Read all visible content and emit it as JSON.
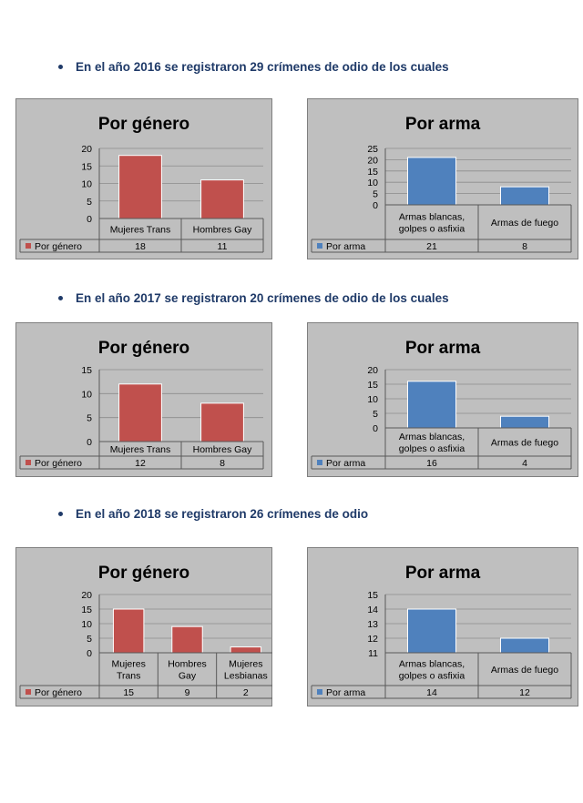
{
  "headings": [
    "En el año 2016 se registraron 29 crímenes de odio de los cuales",
    "En el año 2017 se registraron 20 crímenes de odio de los cuales",
    "En el año 2018 se registraron 26 crímenes de odio"
  ],
  "colors": {
    "gender": "#c0504d",
    "weapon": "#4f81bd",
    "panel": "#bfbfbf"
  },
  "chart_data": [
    {
      "type": "bar",
      "title": "Por género",
      "categories": [
        [
          "Mujeres Trans"
        ],
        [
          "Hombres Gay"
        ]
      ],
      "series": [
        {
          "name": "Por género",
          "values": [
            18,
            11
          ]
        }
      ],
      "ylim": [
        0,
        20
      ],
      "yticks": [
        0,
        5,
        10,
        15,
        20
      ]
    },
    {
      "type": "bar",
      "title": "Por arma",
      "categories": [
        [
          "Armas blancas,",
          "golpes o asfixia"
        ],
        [
          "Armas de fuego"
        ]
      ],
      "series": [
        {
          "name": "Por arma",
          "values": [
            21,
            8
          ]
        }
      ],
      "ylim": [
        0,
        25
      ],
      "yticks": [
        0,
        5,
        10,
        15,
        20,
        25
      ]
    },
    {
      "type": "bar",
      "title": "Por género",
      "categories": [
        [
          "Mujeres Trans"
        ],
        [
          "Hombres Gay"
        ]
      ],
      "series": [
        {
          "name": "Por género",
          "values": [
            12,
            8
          ]
        }
      ],
      "ylim": [
        0,
        15
      ],
      "yticks": [
        0,
        5,
        10,
        15
      ]
    },
    {
      "type": "bar",
      "title": "Por arma",
      "categories": [
        [
          "Armas blancas,",
          "golpes o asfixia"
        ],
        [
          "Armas de fuego"
        ]
      ],
      "series": [
        {
          "name": "Por arma",
          "values": [
            16,
            4
          ]
        }
      ],
      "ylim": [
        0,
        20
      ],
      "yticks": [
        0,
        5,
        10,
        15,
        20
      ]
    },
    {
      "type": "bar",
      "title": "Por género",
      "categories": [
        [
          "Mujeres",
          "Trans"
        ],
        [
          "Hombres",
          "Gay"
        ],
        [
          "Mujeres",
          "Lesbianas"
        ]
      ],
      "series": [
        {
          "name": "Por género",
          "values": [
            15,
            9,
            2
          ]
        }
      ],
      "ylim": [
        0,
        20
      ],
      "yticks": [
        0,
        5,
        10,
        15,
        20
      ]
    },
    {
      "type": "bar",
      "title": "Por arma",
      "categories": [
        [
          "Armas blancas,",
          "golpes o asfixia"
        ],
        [
          "Armas de fuego"
        ]
      ],
      "series": [
        {
          "name": "Por arma",
          "values": [
            14,
            12
          ]
        }
      ],
      "ylim": [
        11,
        15
      ],
      "yticks": [
        11,
        12,
        13,
        14,
        15
      ]
    }
  ]
}
